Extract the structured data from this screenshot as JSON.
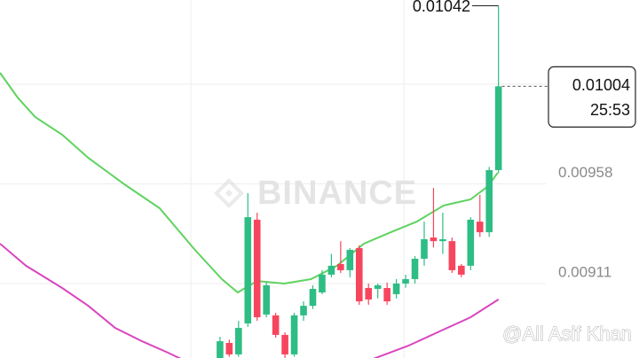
{
  "chart_data": {
    "type": "candlestick",
    "watermark": "BINANCE",
    "credit": "@Ali Asif Khan",
    "countdown": "25:53",
    "up_color": "#2ebd85",
    "down_color": "#f6465d",
    "x": [
      0,
      1,
      2,
      3,
      4,
      5,
      6,
      7,
      8,
      9,
      10,
      11,
      12,
      13,
      14,
      15,
      16,
      17,
      18,
      19,
      20,
      21,
      22,
      23,
      24,
      25,
      26,
      27,
      28,
      29,
      30
    ],
    "open": [
      0.008759,
      0.00883,
      0.008776,
      0.008922,
      0.009411,
      0.008964,
      0.00896,
      0.008868,
      0.008776,
      0.00896,
      0.009005,
      0.009068,
      0.009152,
      0.009202,
      0.009173,
      0.009277,
      0.009089,
      0.009085,
      0.009089,
      0.00906,
      0.00911,
      0.009131,
      0.009227,
      0.009327,
      0.00931,
      0.00931,
      0.009194,
      0.009194,
      0.009402,
      0.009352,
      0.009645
    ],
    "high": [
      0.008859,
      0.008845,
      0.008934,
      0.009536,
      0.009444,
      0.009115,
      0.008972,
      0.00888,
      0.008972,
      0.009026,
      0.009102,
      0.009173,
      0.00925,
      0.00931,
      0.009277,
      0.00929,
      0.00911,
      0.00911,
      0.009115,
      0.009131,
      0.009152,
      0.00924,
      0.009402,
      0.009561,
      0.009444,
      0.009327,
      0.009202,
      0.009423,
      0.009528,
      0.00966,
      0.01042
    ],
    "low": [
      0.008759,
      0.008765,
      0.008765,
      0.008905,
      0.008934,
      0.008951,
      0.008855,
      0.008759,
      0.008765,
      0.008934,
      0.00899,
      0.00906,
      0.00914,
      0.00916,
      0.00914,
      0.00901,
      0.00901,
      0.00904,
      0.00901,
      0.00904,
      0.00909,
      0.00911,
      0.009194,
      0.00928,
      0.00925,
      0.00916,
      0.00914,
      0.009173,
      0.00933,
      0.00933,
      0.00963
    ],
    "close": [
      0.008838,
      0.008776,
      0.008901,
      0.009423,
      0.008951,
      0.009102,
      0.008868,
      0.008776,
      0.00896,
      0.009005,
      0.009085,
      0.009152,
      0.009194,
      0.009173,
      0.009269,
      0.009026,
      0.009035,
      0.009102,
      0.009026,
      0.00911,
      0.009131,
      0.009227,
      0.009319,
      0.00931,
      0.009319,
      0.009173,
      0.009152,
      0.009411,
      0.009352,
      0.009645,
      0.01004
    ],
    "series": [
      {
        "color": "#5ed35e",
        "x": [
          -23.7,
          -21.8,
          -19.9,
          -17.0,
          -14.2,
          -10.3,
          -6.5,
          -2.7,
          0.2,
          1.9,
          4.0,
          6.9,
          9.8,
          12.6,
          15.5,
          18.4,
          21.2,
          24.1,
          27.0,
          28.9,
          29.9
        ],
        "values": [
          0.010104,
          0.009987,
          0.009895,
          0.009812,
          0.009703,
          0.009578,
          0.009465,
          0.009269,
          0.009131,
          0.009068,
          0.009122,
          0.00911,
          0.009131,
          0.009194,
          0.009298,
          0.009352,
          0.009402,
          0.009478,
          0.009507,
          0.00957,
          0.009632
        ]
      },
      {
        "color": "#d946bf",
        "x": [
          -23.7,
          -20.9,
          -17.0,
          -14.2,
          -11.3,
          -8.4,
          -5.6,
          -3.2,
          5.0,
          16.5,
          20.3,
          24.1,
          27.0,
          30.0
        ],
        "values": [
          0.009298,
          0.009194,
          0.009089,
          0.009005,
          0.008901,
          0.008838,
          0.008784,
          0.008734,
          0.008692,
          0.008755,
          0.008817,
          0.008893,
          0.008951,
          0.009035
        ]
      }
    ],
    "xlim": [
      -23.7,
      35.1
    ],
    "ylim": [
      0.008759,
      0.010447
    ],
    "yticks": [
      0.00911,
      0.00958,
      0.01005
    ],
    "grid": true
  }
}
